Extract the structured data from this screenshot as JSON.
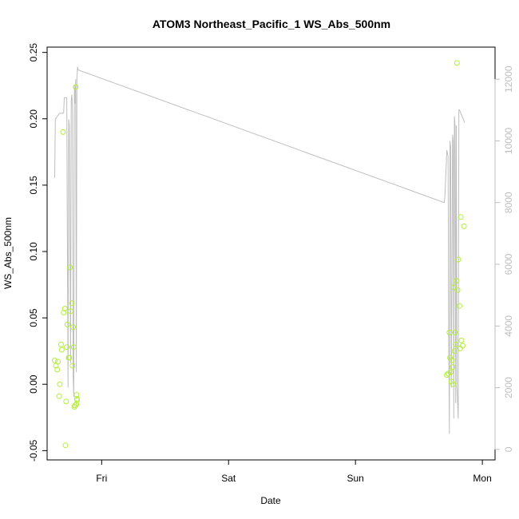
{
  "chart_data": {
    "type": "scatter",
    "title": "ATOM3 Northeast_Pacific_1 WS_Abs_500nm",
    "xlabel": "Date",
    "ylabel": "WS_Abs_500nm",
    "x_ticks": [
      "Fri",
      "Sat",
      "Sun",
      "Mon"
    ],
    "x_tick_positions_days": [
      0,
      1,
      2,
      3
    ],
    "xlim_days": [
      -0.43,
      3.1
    ],
    "y_ticks": [
      -0.05,
      0.0,
      0.05,
      0.1,
      0.15,
      0.2,
      0.25
    ],
    "y_tick_labels": [
      "-0.05",
      "0.00",
      "0.05",
      "0.10",
      "0.15",
      "0.20",
      "0.25"
    ],
    "ylim": [
      -0.057,
      0.254
    ],
    "y2_ticks": [
      0,
      2000,
      4000,
      6000,
      8000,
      10000,
      12000
    ],
    "y2_tick_labels": [
      "0",
      "2000",
      "4000",
      "6000",
      "8000",
      "10000",
      "12000"
    ],
    "y2lim": [
      -340,
      13040
    ],
    "grid": false,
    "colors": {
      "points": "#b3ee3a",
      "altitude_line": "#bebebe",
      "axes": "#000000"
    },
    "series": [
      {
        "axis": "left",
        "style": "points",
        "points": [
          [
            -0.37,
            0.018
          ],
          [
            -0.36,
            0.014
          ],
          [
            -0.35,
            0.011
          ],
          [
            -0.345,
            0.017
          ],
          [
            -0.335,
            -0.009
          ],
          [
            -0.33,
            0.0
          ],
          [
            -0.32,
            0.03
          ],
          [
            -0.315,
            0.026
          ],
          [
            -0.305,
            0.19
          ],
          [
            -0.3,
            0.054
          ],
          [
            -0.29,
            0.057
          ],
          [
            -0.285,
            -0.046
          ],
          [
            -0.28,
            -0.013
          ],
          [
            -0.275,
            0.028
          ],
          [
            -0.27,
            0.045
          ],
          [
            -0.26,
            0.02
          ],
          [
            -0.255,
            0.02
          ],
          [
            -0.25,
            0.088
          ],
          [
            -0.245,
            0.055
          ],
          [
            -0.235,
            0.061
          ],
          [
            -0.23,
            0.014
          ],
          [
            -0.225,
            0.043
          ],
          [
            -0.22,
            0.028
          ],
          [
            -0.215,
            -0.017
          ],
          [
            -0.21,
            -0.016
          ],
          [
            -0.205,
            0.224
          ],
          [
            -0.2,
            -0.015
          ],
          [
            -0.198,
            -0.008
          ],
          [
            -0.195,
            -0.011
          ],
          [
            -0.193,
            -0.012
          ],
          [
            2.72,
            0.007
          ],
          [
            2.73,
            0.008
          ],
          [
            2.74,
            0.039
          ],
          [
            2.745,
            0.02
          ],
          [
            2.75,
            0.009
          ],
          [
            2.755,
            0.002
          ],
          [
            2.76,
            0.018
          ],
          [
            2.765,
            0.013
          ],
          [
            2.77,
            0.0
          ],
          [
            2.775,
            0.073
          ],
          [
            2.78,
            0.025
          ],
          [
            2.785,
            0.039
          ],
          [
            2.79,
            0.03
          ],
          [
            2.795,
            0.078
          ],
          [
            2.8,
            0.242
          ],
          [
            2.805,
            0.071
          ],
          [
            2.81,
            0.094
          ],
          [
            2.82,
            0.059
          ],
          [
            2.825,
            0.027
          ],
          [
            2.83,
            0.126
          ],
          [
            2.835,
            0.033
          ],
          [
            2.845,
            0.029
          ],
          [
            2.855,
            0.119
          ]
        ]
      },
      {
        "axis": "right",
        "style": "line",
        "points": [
          [
            -0.37,
            8800
          ],
          [
            -0.365,
            10700
          ],
          [
            -0.35,
            10800
          ],
          [
            -0.33,
            10900
          ],
          [
            -0.3,
            10900
          ],
          [
            -0.295,
            11400
          ],
          [
            -0.275,
            11400
          ],
          [
            -0.265,
            2000
          ],
          [
            -0.26,
            10700
          ],
          [
            -0.255,
            10500
          ],
          [
            -0.245,
            2800
          ],
          [
            -0.24,
            11300
          ],
          [
            -0.235,
            11500
          ],
          [
            -0.23,
            11000
          ],
          [
            -0.225,
            2400
          ],
          [
            -0.22,
            1700
          ],
          [
            -0.215,
            11800
          ],
          [
            -0.21,
            11200
          ],
          [
            -0.205,
            12000
          ],
          [
            -0.2,
            2500
          ],
          [
            -0.195,
            12000
          ],
          [
            -0.19,
            12400
          ],
          [
            -0.185,
            12300
          ],
          [
            2.7,
            8000
          ],
          [
            2.705,
            8200
          ],
          [
            2.72,
            9700
          ],
          [
            2.73,
            9500
          ],
          [
            2.735,
            3500
          ],
          [
            2.74,
            500
          ],
          [
            2.745,
            10000
          ],
          [
            2.75,
            9800
          ],
          [
            2.755,
            2000
          ],
          [
            2.76,
            5000
          ],
          [
            2.765,
            10200
          ],
          [
            2.77,
            10000
          ],
          [
            2.775,
            1000
          ],
          [
            2.78,
            10800
          ],
          [
            2.785,
            10500
          ],
          [
            2.79,
            1500
          ],
          [
            2.795,
            10500
          ],
          [
            2.8,
            2000
          ],
          [
            2.81,
            1000
          ],
          [
            2.815,
            11000
          ],
          [
            2.82,
            11000
          ],
          [
            2.85,
            10700
          ],
          [
            2.86,
            10600
          ]
        ]
      }
    ]
  }
}
